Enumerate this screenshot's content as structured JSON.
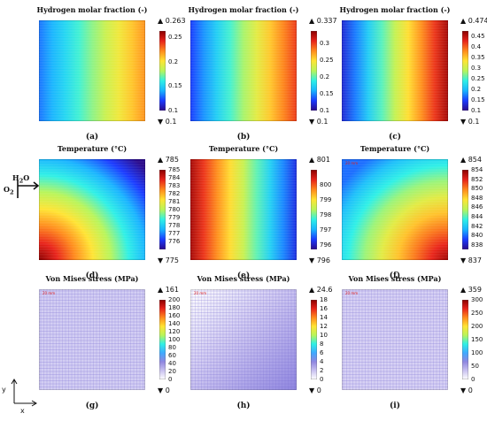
{
  "chart_data": [
    {
      "type": "heatmap",
      "title": "Hydrogen molar fraction (-)",
      "caption": "(a)",
      "max_label": "0.263",
      "min_label": "0.1",
      "colorbar": {
        "ticks": [
          "0.25",
          "0.2",
          "0.15",
          "0.1"
        ],
        "range": [
          0.1,
          0.263
        ]
      },
      "field": {
        "pattern": "horizontal",
        "from": 0.13,
        "to": 0.22
      },
      "scale_label": "",
      "texture": "channels"
    },
    {
      "type": "heatmap",
      "title": "Hydrogen molar fraction (-)",
      "caption": "(b)",
      "max_label": "0.337",
      "min_label": "0.1",
      "colorbar": {
        "ticks": [
          "0.3",
          "0.25",
          "0.2",
          "0.15",
          "0.1"
        ],
        "range": [
          0.1,
          0.337
        ]
      },
      "field": {
        "pattern": "horizontal",
        "from": 0.13,
        "to": 0.3
      },
      "scale_label": "",
      "texture": "channels"
    },
    {
      "type": "heatmap",
      "title": "Hydrogen molar fraction (-)",
      "caption": "(c)",
      "max_label": "0.474",
      "min_label": "0.1",
      "colorbar": {
        "ticks": [
          "0.45",
          "0.4",
          "0.35",
          "0.3",
          "0.25",
          "0.2",
          "0.15",
          "0.1"
        ],
        "range": [
          0.1,
          0.474
        ]
      },
      "field": {
        "pattern": "horizontal",
        "from": 0.13,
        "to": 0.46
      },
      "scale_label": "",
      "texture": "channels"
    },
    {
      "type": "heatmap",
      "title": "Temperature (°C)",
      "caption": "(d)",
      "max_label": "785",
      "min_label": "775",
      "colorbar": {
        "ticks": [
          "785",
          "784",
          "783",
          "782",
          "781",
          "780",
          "779",
          "778",
          "777",
          "776"
        ],
        "range": [
          775,
          785
        ]
      },
      "field": {
        "pattern": "corner_bl",
        "from": 785,
        "to": 775
      },
      "scale_label": "",
      "texture": "channels"
    },
    {
      "type": "heatmap",
      "title": "Temperature (°C)",
      "caption": "(e)",
      "max_label": "801",
      "min_label": "796",
      "colorbar": {
        "ticks": [
          "800",
          "799",
          "798",
          "797",
          "796"
        ],
        "range": [
          795.7,
          801
        ]
      },
      "field": {
        "pattern": "horizontal",
        "from": 800.8,
        "to": 796.2
      },
      "scale_label": "",
      "texture": "channels"
    },
    {
      "type": "heatmap",
      "title": "Temperature (°C)",
      "caption": "(f)",
      "max_label": "854",
      "min_label": "837",
      "colorbar": {
        "ticks": [
          "854",
          "852",
          "850",
          "848",
          "846",
          "844",
          "842",
          "840",
          "838"
        ],
        "range": [
          837,
          854
        ]
      },
      "field": {
        "pattern": "corner_br",
        "from": 853.5,
        "to": 840
      },
      "scale_label": "20 mm",
      "texture": "channels"
    },
    {
      "type": "heatmap",
      "title": "Von Mises stress (MPa)",
      "caption": "(g)",
      "max_label": "161",
      "min_label": "0",
      "colorbar": {
        "ticks": [
          "200",
          "180",
          "160",
          "140",
          "120",
          "100",
          "80",
          "60",
          "40",
          "20",
          "0"
        ],
        "range": [
          0,
          200
        ]
      },
      "field": {
        "pattern": "uniform",
        "from": 18,
        "to": 18
      },
      "scale_label": "20 mm",
      "texture": "grid"
    },
    {
      "type": "heatmap",
      "title": "Von Mises stress (MPa)",
      "caption": "(h)",
      "max_label": "24.6",
      "min_label": "0",
      "colorbar": {
        "ticks": [
          "18",
          "16",
          "14",
          "12",
          "10",
          "8",
          "6",
          "4",
          "2",
          "0"
        ],
        "range": [
          0,
          18
        ]
      },
      "field": {
        "pattern": "diagonal",
        "from": 0,
        "to": 4
      },
      "scale_label": "20 mm",
      "texture": "grid"
    },
    {
      "type": "heatmap",
      "title": "Von Mises stress (MPa)",
      "caption": "(i)",
      "max_label": "359",
      "min_label": "0",
      "colorbar": {
        "ticks": [
          "300",
          "250",
          "200",
          "150",
          "100",
          "50",
          "0"
        ],
        "range": [
          0,
          300
        ]
      },
      "field": {
        "pattern": "uniform",
        "from": 25,
        "to": 25
      },
      "scale_label": "20 mm",
      "texture": "grid"
    }
  ],
  "annotations": {
    "inlet_h2o": "H",
    "inlet_h2o_sub": "2",
    "inlet_h2o_tail": "O",
    "inlet_o2": "O",
    "inlet_o2_sub": "2",
    "axis_x": "x",
    "axis_y": "y"
  },
  "colors": {
    "rainbow": [
      "#2a0a8a",
      "#1a3aff",
      "#19b4ff",
      "#2ef0e6",
      "#b8f55a",
      "#ffe433",
      "#ff8a1c",
      "#e8221a",
      "#8a0000"
    ],
    "stress": [
      "#ffffff",
      "#c9c2f0",
      "#8f86e0",
      "#3fa9ff",
      "#2ef0e6",
      "#b8f55a",
      "#ffe433",
      "#ff8a1c",
      "#e8221a",
      "#8a0000"
    ]
  }
}
